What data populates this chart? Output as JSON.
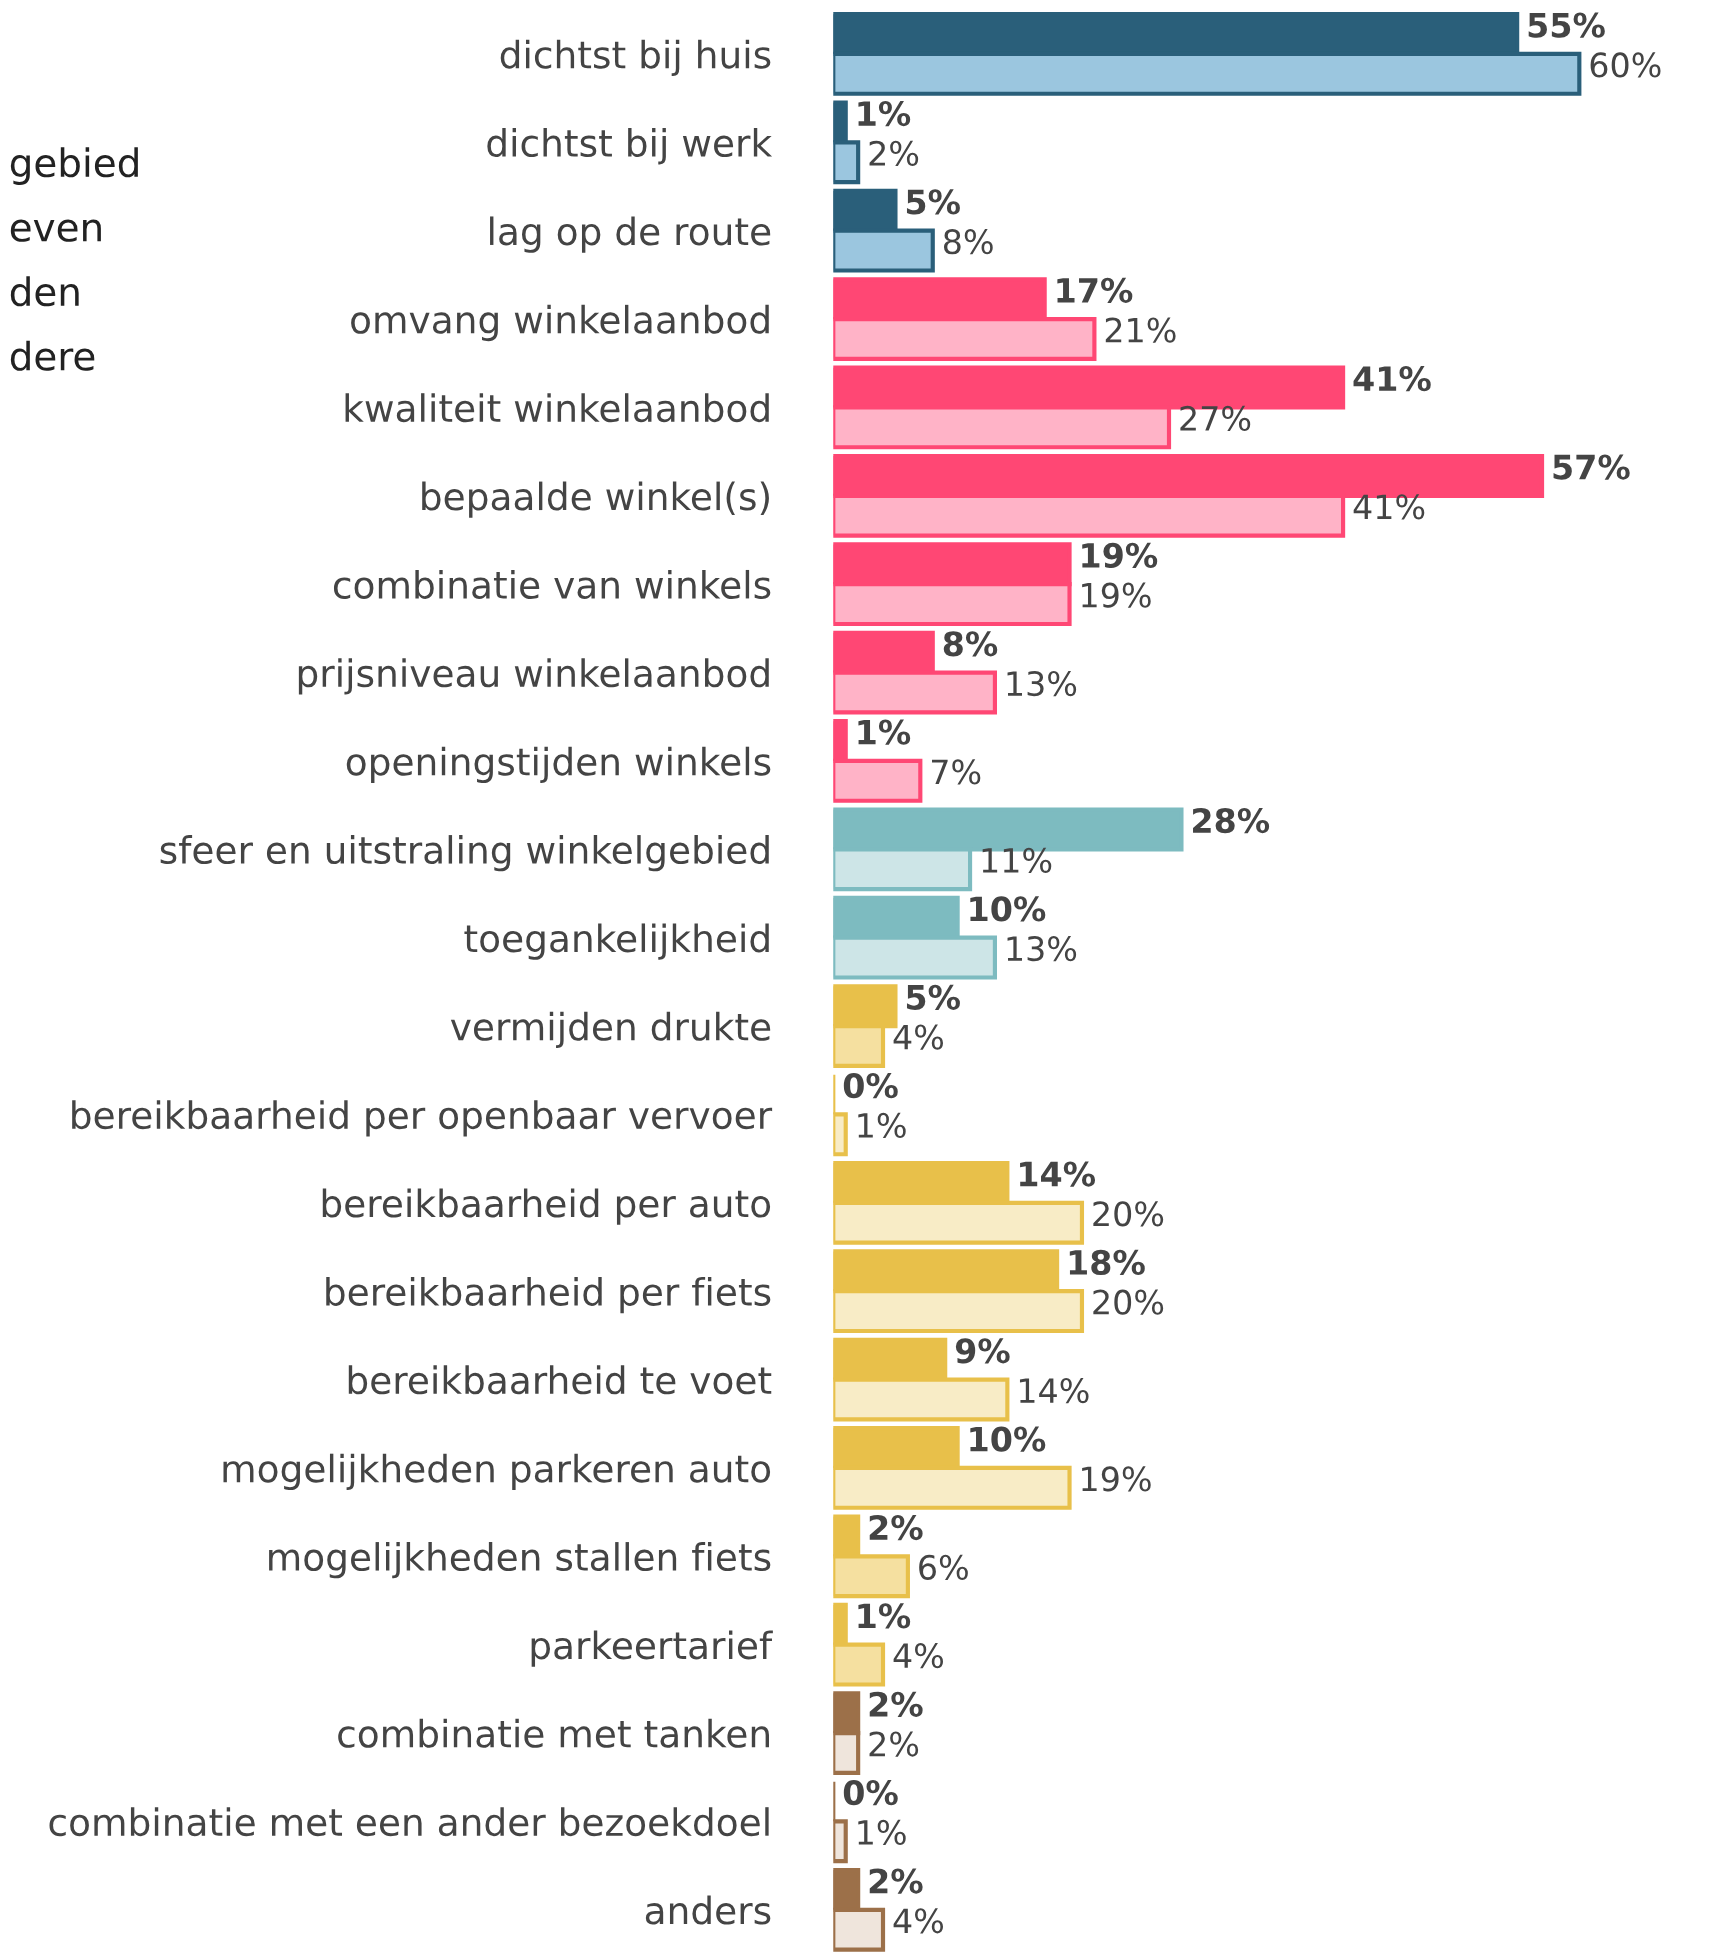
{
  "chart_data": {
    "type": "bar",
    "orientation": "horizontal",
    "categories": [
      "dichtst bij huis",
      "dichtst bij werk",
      "lag op de route",
      "omvang winkelaanbod",
      "kwaliteit winkelaanbod",
      "bepaalde winkel(s)",
      "combinatie van winkels",
      "prijsniveau winkelaanbod",
      "openingstijden winkels",
      "sfeer en uitstraling winkelgebied",
      "toegankelijkheid",
      "vermijden drukte",
      "bereikbaarheid per openbaar vervoer",
      "bereikbaarheid per auto",
      "bereikbaarheid per fiets",
      "bereikbaarheid te voet",
      "mogelijkheden parkeren auto",
      "mogelijkheden stallen fiets",
      "parkeertarief",
      "combinatie met tanken",
      "combinatie met een ander bezoekdoel",
      "anders"
    ],
    "series": [
      {
        "colors": [
          "#2a5f7a",
          "#2a5f7a",
          "#2a5f7a",
          "#ff4774",
          "#ff4774",
          "#ff4774",
          "#ff4774",
          "#ff4774",
          "#ff4774",
          "#7dbbc0",
          "#7dbbc0",
          "#e8c04a",
          "#e8c04a",
          "#e8c04a",
          "#e8c04a",
          "#e8c04a",
          "#e8c04a",
          "#e8c04a",
          "#e8c04a",
          "#9c7049",
          "#9c7049",
          "#9c7049"
        ],
        "values": [
          55,
          1,
          5,
          17,
          41,
          57,
          19,
          8,
          1,
          28,
          10,
          5,
          0,
          14,
          18,
          9,
          10,
          2,
          1,
          2,
          0,
          2
        ],
        "value_labels": [
          "55%",
          "1%",
          "5%",
          "17%",
          "41%",
          "57%",
          "19%",
          "8%",
          "1%",
          "28%",
          "10%",
          "5%",
          "0%",
          "14%",
          "18%",
          "9%",
          "10%",
          "2%",
          "1%",
          "2%",
          "0%",
          "2%"
        ]
      },
      {
        "colors": [
          "#9bc6df",
          "#9bc6df",
          "#9bc6df",
          "#ffb3c7",
          "#ffb3c7",
          "#ffb3c7",
          "#ffb3c7",
          "#ffb3c7",
          "#ffb3c7",
          "#cde5e7",
          "#cde5e7",
          "#f5e0a0",
          "#f8ecc6",
          "#f8ecc6",
          "#f8ecc6",
          "#f8ecc6",
          "#f8ecc6",
          "#f5e0a0",
          "#f5e0a0",
          "#efe5dc",
          "#efe5dc",
          "#efe5dc"
        ],
        "values": [
          60,
          2,
          8,
          21,
          27,
          41,
          19,
          13,
          7,
          11,
          13,
          4,
          1,
          20,
          20,
          14,
          19,
          6,
          4,
          2,
          1,
          4
        ],
        "value_labels": [
          "60%",
          "2%",
          "8%",
          "21%",
          "27%",
          "41%",
          "19%",
          "13%",
          "7%",
          "11%",
          "13%",
          "4%",
          "1%",
          "20%",
          "20%",
          "14%",
          "19%",
          "6%",
          "4%",
          "2%",
          "1%",
          "4%"
        ]
      }
    ],
    "annotations": [
      "gebied",
      "even",
      "den",
      "dere"
    ]
  }
}
